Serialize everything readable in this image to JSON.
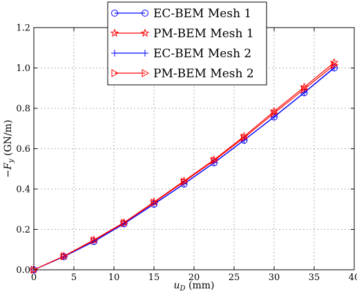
{
  "chart_data": {
    "type": "line",
    "title": "",
    "xlabel": "u_D (mm)",
    "xlabel_main": "u",
    "xlabel_sub": "D",
    "xlabel_unit": " (mm)",
    "ylabel": "−F_y (GN/m)",
    "ylabel_prefix": "−F",
    "ylabel_sub": "y",
    "ylabel_unit": " (GN/m)",
    "xlim": [
      0,
      40
    ],
    "ylim": [
      0,
      1.2
    ],
    "xticks": [
      "0",
      "5",
      "10",
      "15",
      "20",
      "25",
      "30",
      "35",
      "40"
    ],
    "yticks": [
      "0.0",
      "0.2",
      "0.4",
      "0.6",
      "0.8",
      "1.0",
      "1.2"
    ],
    "grid": true,
    "legend_position": "top-right",
    "x": [
      0,
      3.75,
      7.5,
      11.25,
      15,
      18.75,
      22.5,
      26.25,
      30,
      33.75,
      37.5
    ],
    "series": [
      {
        "name": "EC-BEM Mesh 1",
        "color": "#0000ff",
        "marker": "circle",
        "values": [
          0,
          0.065,
          0.14,
          0.228,
          0.325,
          0.425,
          0.53,
          0.642,
          0.757,
          0.877,
          1.0
        ]
      },
      {
        "name": "PM-BEM Mesh 1",
        "color": "#ff0000",
        "marker": "star",
        "values": [
          0,
          0.068,
          0.148,
          0.234,
          0.336,
          0.44,
          0.545,
          0.661,
          0.785,
          0.905,
          1.027
        ]
      },
      {
        "name": "EC-BEM Mesh 2",
        "color": "#0000ff",
        "marker": "plus",
        "values": [
          0,
          0.065,
          0.141,
          0.228,
          0.326,
          0.426,
          0.531,
          0.643,
          0.758,
          0.878,
          1.002
        ]
      },
      {
        "name": "PM-BEM Mesh 2",
        "color": "#ff0000",
        "marker": "triangle-right",
        "values": [
          0,
          0.067,
          0.146,
          0.232,
          0.333,
          0.436,
          0.541,
          0.655,
          0.776,
          0.895,
          1.015
        ]
      }
    ]
  }
}
